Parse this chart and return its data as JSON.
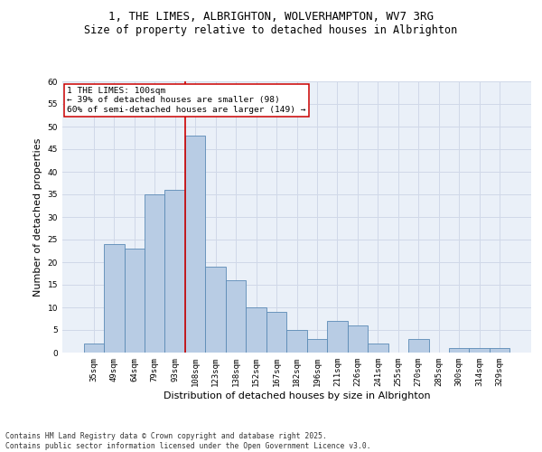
{
  "title_line1": "1, THE LIMES, ALBRIGHTON, WOLVERHAMPTON, WV7 3RG",
  "title_line2": "Size of property relative to detached houses in Albrighton",
  "xlabel": "Distribution of detached houses by size in Albrighton",
  "ylabel": "Number of detached properties",
  "categories": [
    "35sqm",
    "49sqm",
    "64sqm",
    "79sqm",
    "93sqm",
    "108sqm",
    "123sqm",
    "138sqm",
    "152sqm",
    "167sqm",
    "182sqm",
    "196sqm",
    "211sqm",
    "226sqm",
    "241sqm",
    "255sqm",
    "270sqm",
    "285sqm",
    "300sqm",
    "314sqm",
    "329sqm"
  ],
  "values": [
    2,
    24,
    23,
    35,
    36,
    48,
    19,
    16,
    10,
    9,
    5,
    3,
    7,
    6,
    2,
    0,
    3,
    0,
    1,
    1,
    1
  ],
  "bar_color": "#b8cce4",
  "bar_edge_color": "#5a8ab5",
  "bar_edge_width": 0.6,
  "vline_x": 4.5,
  "vline_color": "#cc0000",
  "annotation_text": "1 THE LIMES: 100sqm\n← 39% of detached houses are smaller (98)\n60% of semi-detached houses are larger (149) →",
  "annotation_box_color": "#ffffff",
  "annotation_box_edge_color": "#cc0000",
  "ylim": [
    0,
    60
  ],
  "yticks": [
    0,
    5,
    10,
    15,
    20,
    25,
    30,
    35,
    40,
    45,
    50,
    55,
    60
  ],
  "grid_color": "#d0d8e8",
  "bg_color": "#eaf0f8",
  "footer_text": "Contains HM Land Registry data © Crown copyright and database right 2025.\nContains public sector information licensed under the Open Government Licence v3.0.",
  "title_fontsize": 9.0,
  "subtitle_fontsize": 8.5,
  "axis_label_fontsize": 8.0,
  "tick_fontsize": 6.5,
  "annotation_fontsize": 6.8,
  "footer_fontsize": 5.8
}
